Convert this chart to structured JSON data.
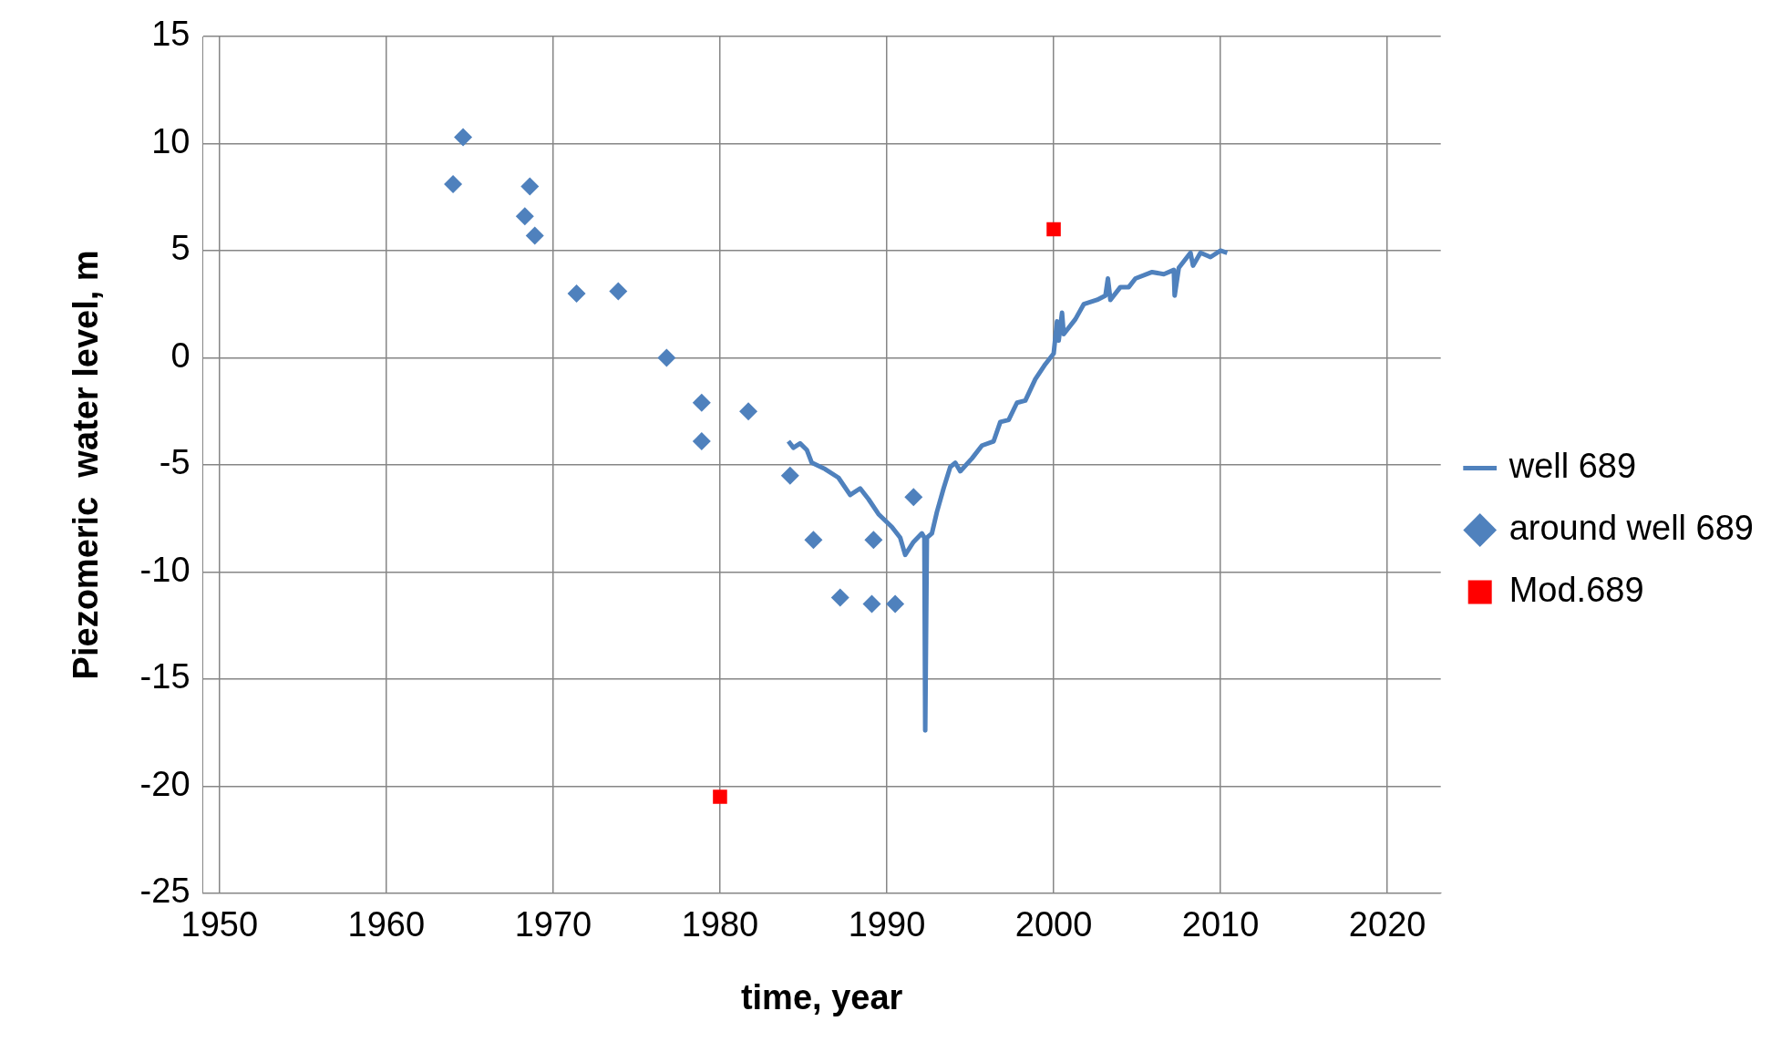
{
  "chart_data": {
    "type": "scatter",
    "xlabel": "time, year",
    "ylabel": "Piezomeric  water level, m",
    "xlim": [
      1949,
      2023.2
    ],
    "xticks": [
      1950,
      1960,
      1970,
      1980,
      1990,
      2000,
      2010,
      2020
    ],
    "ylim": [
      -25,
      15
    ],
    "yticks": [
      -25,
      -20,
      -15,
      -10,
      -5,
      0,
      5,
      10,
      15
    ],
    "grid": true,
    "legend": "right",
    "series": [
      {
        "name": "well 689",
        "type": "line",
        "marker": "none",
        "line_style": "solid",
        "color": "#4f81bd",
        "x": [
          1984.1,
          1984.4,
          1984.8,
          1985.2,
          1985.5,
          1986.3,
          1987.1,
          1987.8,
          1988.4,
          1988.9,
          1989.5,
          1990.3,
          1990.8,
          1991.1,
          1991.6,
          1992.1,
          1992.25,
          1992.3,
          1992.4,
          1992.7,
          1993,
          1993.4,
          1993.8,
          1994.1,
          1994.4,
          1995.1,
          1995.7,
          1996.4,
          1996.8,
          1997.3,
          1997.8,
          1998.3,
          1998.9,
          1999.5,
          2000,
          2000.2,
          2000.3,
          2000.5,
          2000.6,
          2001.3,
          2001.8,
          2002.6,
          2003.1,
          2003.25,
          2003.4,
          2004,
          2004.5,
          2004.9,
          2005.9,
          2006.6,
          2007.2,
          2007.25,
          2007.5,
          2008.2,
          2008.35,
          2008.8,
          2009.4,
          2010,
          2010.4
        ],
        "values": [
          -3.9,
          -4.2,
          -4,
          -4.3,
          -4.9,
          -5.2,
          -5.6,
          -6.4,
          -6.1,
          -6.6,
          -7.3,
          -7.9,
          -8.4,
          -9.2,
          -8.6,
          -8.2,
          -8.4,
          -17.4,
          -8.4,
          -8.2,
          -7.2,
          -6.1,
          -5.1,
          -4.9,
          -5.3,
          -4.7,
          -4.1,
          -3.9,
          -3,
          -2.9,
          -2.1,
          -2,
          -1,
          -0.3,
          0.2,
          1.7,
          0.8,
          2.1,
          1.1,
          1.8,
          2.5,
          2.7,
          2.9,
          3.7,
          2.7,
          3.3,
          3.3,
          3.7,
          4,
          3.9,
          4.1,
          2.9,
          4.2,
          4.9,
          4.3,
          4.9,
          4.7,
          5,
          4.9
        ]
      },
      {
        "name": "around well 689",
        "type": "scatter",
        "marker": "diamond",
        "color": "#4f81bd",
        "x": [
          1964,
          1964.6,
          1968.3,
          1968.6,
          1968.9,
          1971.4,
          1973.9,
          1976.8,
          1978.9,
          1978.9,
          1981.7,
          1984.2,
          1985.6,
          1987.2,
          1989.1,
          1989.2,
          1990.5,
          1991.6
        ],
        "values": [
          8.1,
          10.3,
          6.6,
          8,
          5.7,
          3,
          3.1,
          0,
          -2.1,
          -3.9,
          -2.5,
          -5.5,
          -8.5,
          -11.2,
          -11.5,
          -8.5,
          -11.5,
          -6.5
        ]
      },
      {
        "name": "Mod.689",
        "type": "scatter",
        "marker": "square",
        "color": "#ff0000",
        "x": [
          1980,
          2000
        ],
        "values": [
          -20.5,
          6
        ]
      }
    ]
  }
}
